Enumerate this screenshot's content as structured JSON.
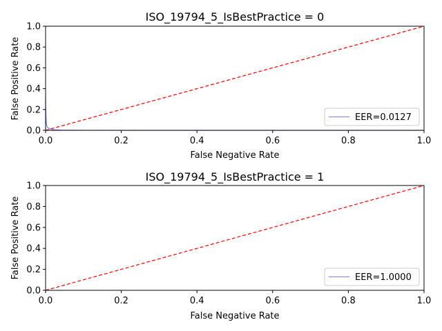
{
  "chart_data": [
    {
      "type": "line",
      "title": "ISO_19794_5_IsBestPractice = 0",
      "xlabel": "False Negative Rate",
      "ylabel": "False Positive Rate",
      "xlim": [
        0,
        1
      ],
      "ylim": [
        0,
        1
      ],
      "xticks": [
        "0.0",
        "0.2",
        "0.4",
        "0.6",
        "0.8",
        "1.0"
      ],
      "yticks": [
        "0.0",
        "0.2",
        "0.4",
        "0.6",
        "0.8",
        "1.0"
      ],
      "grid": false,
      "legend_position": "lower-right",
      "series": [
        {
          "name": "EER=0.0127",
          "color": "#7b7bf2",
          "x": [
            0.0,
            0.0,
            0.0008,
            0.0015,
            0.002,
            0.003,
            0.005,
            0.008,
            0.012,
            0.0127,
            0.02,
            0.04,
            0.1,
            0.3,
            0.6,
            1.0
          ],
          "y": [
            0.32,
            0.25,
            0.16,
            0.1,
            0.07,
            0.045,
            0.03,
            0.02,
            0.014,
            0.0127,
            0.006,
            0.002,
            0.0005,
            0.0,
            0.0,
            0.0
          ]
        }
      ],
      "reference_line": {
        "color": "#ff0000",
        "style": "dashed",
        "x": [
          0,
          1
        ],
        "y": [
          0,
          1
        ]
      }
    },
    {
      "type": "line",
      "title": "ISO_19794_5_IsBestPractice = 1",
      "xlabel": "False Negative Rate",
      "ylabel": "False Positive Rate",
      "xlim": [
        0,
        1
      ],
      "ylim": [
        0,
        1
      ],
      "xticks": [
        "0.0",
        "0.2",
        "0.4",
        "0.6",
        "0.8",
        "1.0"
      ],
      "yticks": [
        "0.0",
        "0.2",
        "0.4",
        "0.6",
        "0.8",
        "1.0"
      ],
      "grid": false,
      "legend_position": "lower-right",
      "series": [
        {
          "name": "EER=1.0000",
          "color": "#7b7bf2",
          "x": [],
          "y": []
        }
      ],
      "reference_line": {
        "color": "#ff0000",
        "style": "dashed",
        "x": [
          0,
          1
        ],
        "y": [
          0,
          1
        ]
      }
    }
  ]
}
